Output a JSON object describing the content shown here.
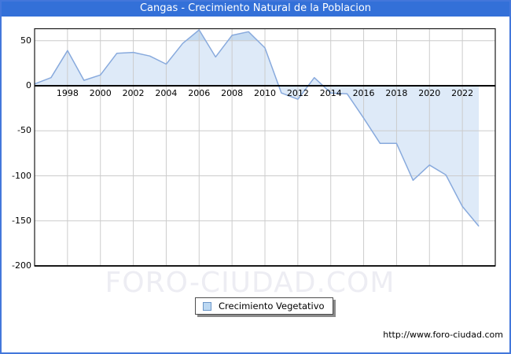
{
  "window": {
    "title": "Cangas - Crecimiento Natural de la Poblacion"
  },
  "legend": {
    "label": "Crecimiento Vegetativo"
  },
  "watermark": "FORO-CIUDAD.COM",
  "footer": {
    "url": "http://www.foro-ciudad.com"
  },
  "colors": {
    "titlebar_bg": "#3370d8",
    "titlebar_text": "#ffffff",
    "frame_border": "#4377db",
    "line": "#88aadd",
    "area_fill": "#deeaf8",
    "area_fill_above_50": "#c6dcf2",
    "grid": "#cccccc",
    "axis": "#000000",
    "plot_border": "#1a1a1a",
    "watermark_text": "#ededf3",
    "legend_marker_fill": "#bcd8f2",
    "legend_marker_border": "#6b96c8"
  },
  "chart_data": {
    "type": "area",
    "title": "Cangas - Crecimiento Natural de la Poblacion",
    "x": [
      1996,
      1997,
      1998,
      1999,
      2000,
      2001,
      2002,
      2003,
      2004,
      2005,
      2006,
      2007,
      2008,
      2009,
      2010,
      2011,
      2012,
      2013,
      2014,
      2015,
      2016,
      2017,
      2018,
      2019,
      2020,
      2021,
      2022,
      2023
    ],
    "series": [
      {
        "name": "Crecimiento Vegetativo",
        "values": [
          2,
          9,
          39,
          6,
          12,
          36,
          37,
          33,
          24,
          47,
          62,
          32,
          56,
          60,
          42,
          -8,
          -15,
          9,
          -8,
          -9,
          -36,
          -64,
          -64,
          -105,
          -88,
          -99,
          -134,
          -156
        ]
      }
    ],
    "xlabel": "",
    "ylabel": "",
    "ylim": [
      -200,
      63
    ],
    "xticks": [
      1998,
      2000,
      2002,
      2004,
      2006,
      2008,
      2010,
      2012,
      2014,
      2016,
      2018,
      2020,
      2022
    ],
    "yticks": [
      50,
      0,
      -50,
      -100,
      -150,
      -200
    ],
    "grid": true,
    "baseline": 0,
    "legend_position": "bottom-center"
  }
}
